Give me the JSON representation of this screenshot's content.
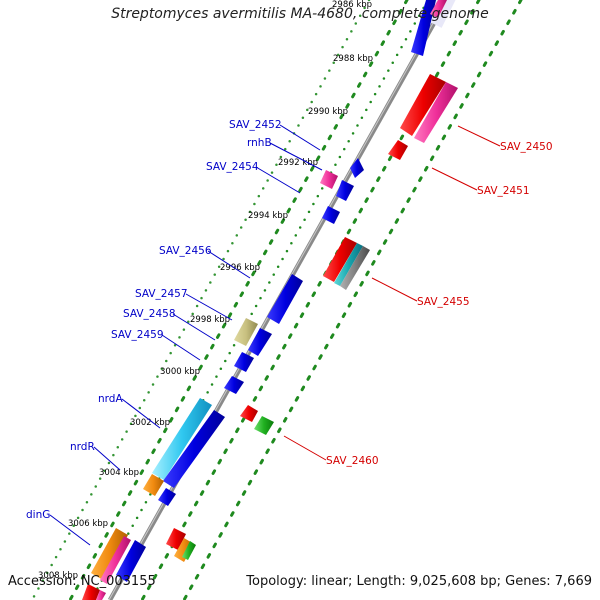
{
  "title": "Streptomyces avermitilis MA-4680, complete genome",
  "footer": {
    "accession": "Accession: NC_003155",
    "stats": "Topology: linear; Length: 9,025,608 bp; Genes: 7,669"
  },
  "colors": {
    "forward_label": "#0000c8",
    "reverse_label": "#d40000",
    "tick": "#1f8a1f",
    "backbone": "#808080"
  },
  "ticks": [
    "2986 kbp",
    "2988 kbp",
    "2990 kbp",
    "2992 kbp",
    "2994 kbp",
    "2996 kbp",
    "2998 kbp",
    "3000 kbp",
    "3002 kbp",
    "3004 kbp",
    "3006 kbp",
    "3008 kbp"
  ],
  "forward_labels": [
    "SAV_2452",
    "rnhB",
    "SAV_2454",
    "SAV_2456",
    "SAV_2457",
    "SAV_2458",
    "SAV_2459",
    "nrdA",
    "nrdR",
    "dinG"
  ],
  "reverse_labels": [
    "SAV_2450",
    "SAV_2451",
    "SAV_2455",
    "SAV_2460"
  ]
}
